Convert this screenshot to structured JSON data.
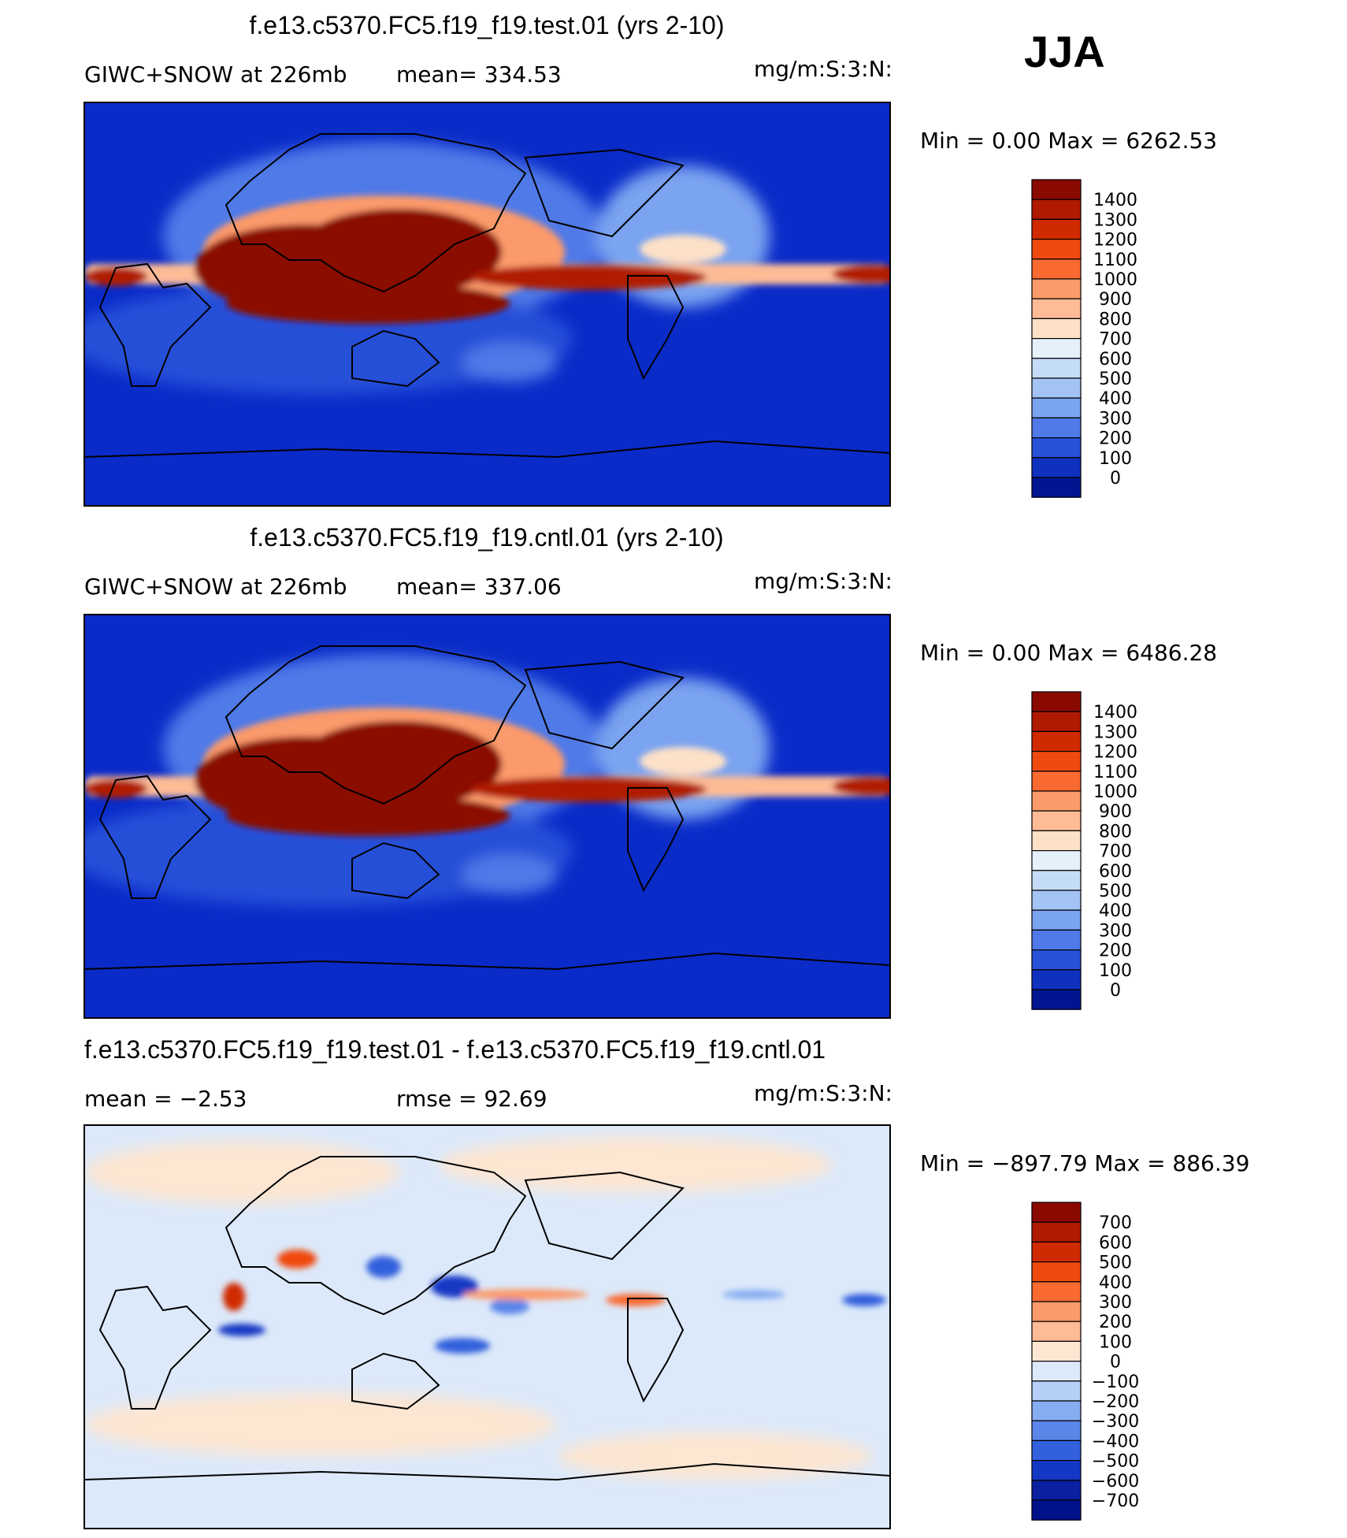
{
  "season": "JJA",
  "panels": [
    {
      "title": "f.e13.c5370.FC5.f19_f19.test.01 (yrs 2-10)",
      "left_label": "GIWC+SNOW at 226mb",
      "mid_label": "mean= 334.53",
      "units": "mg/m:S:3:N:",
      "minmax": "Min =    0.00 Max = 6262.53",
      "scale": "abs"
    },
    {
      "title": "f.e13.c5370.FC5.f19_f19.cntl.01 (yrs 2-10)",
      "left_label": "GIWC+SNOW at 226mb",
      "mid_label": "mean= 337.06",
      "units": "mg/m:S:3:N:",
      "minmax": "Min =    0.00 Max = 6486.28",
      "scale": "abs"
    },
    {
      "title": "f.e13.c5370.FC5.f19_f19.test.01 - f.e13.c5370.FC5.f19_f19.cntl.01",
      "left_label": "mean =   −2.53",
      "mid_label": "rmse =   92.69",
      "units": "mg/m:S:3:N:",
      "minmax": "Min = −897.79 Max = 886.39",
      "scale": "diff"
    }
  ],
  "colorbars": {
    "abs": {
      "labels": [
        "1400",
        "1300",
        "1200",
        "1100",
        "1000",
        "900",
        "800",
        "700",
        "600",
        "500",
        "400",
        "300",
        "200",
        "100",
        "0"
      ],
      "colors": [
        "#8a0a00",
        "#b01a00",
        "#d02a00",
        "#f04a10",
        "#f86a30",
        "#fb9a6a",
        "#fdbb96",
        "#fde0c8",
        "#e6f0fb",
        "#c5dcf8",
        "#a3c3f5",
        "#7aa3f0",
        "#4f7ae8",
        "#2850d8",
        "#1030c0",
        "#00158f"
      ]
    },
    "diff": {
      "labels": [
        "700",
        "600",
        "500",
        "400",
        "300",
        "200",
        "100",
        "0",
        "−100",
        "−200",
        "−300",
        "−400",
        "−500",
        "−600",
        "−700"
      ],
      "colors": [
        "#8a0a00",
        "#b01a00",
        "#d02a00",
        "#f04a10",
        "#f86a30",
        "#fb9a6a",
        "#fdbb96",
        "#fde6d2",
        "#dce9fa",
        "#b5cff6",
        "#86adf1",
        "#5a86ea",
        "#3360dc",
        "#1438c4",
        "#0a20a0",
        "#00128a"
      ]
    }
  },
  "map_colors": {
    "ocean_low": "#0a2bc8",
    "high": "#8a0a00",
    "diff_base": "#dce9fa",
    "diff_pos": "#fde6d2"
  }
}
